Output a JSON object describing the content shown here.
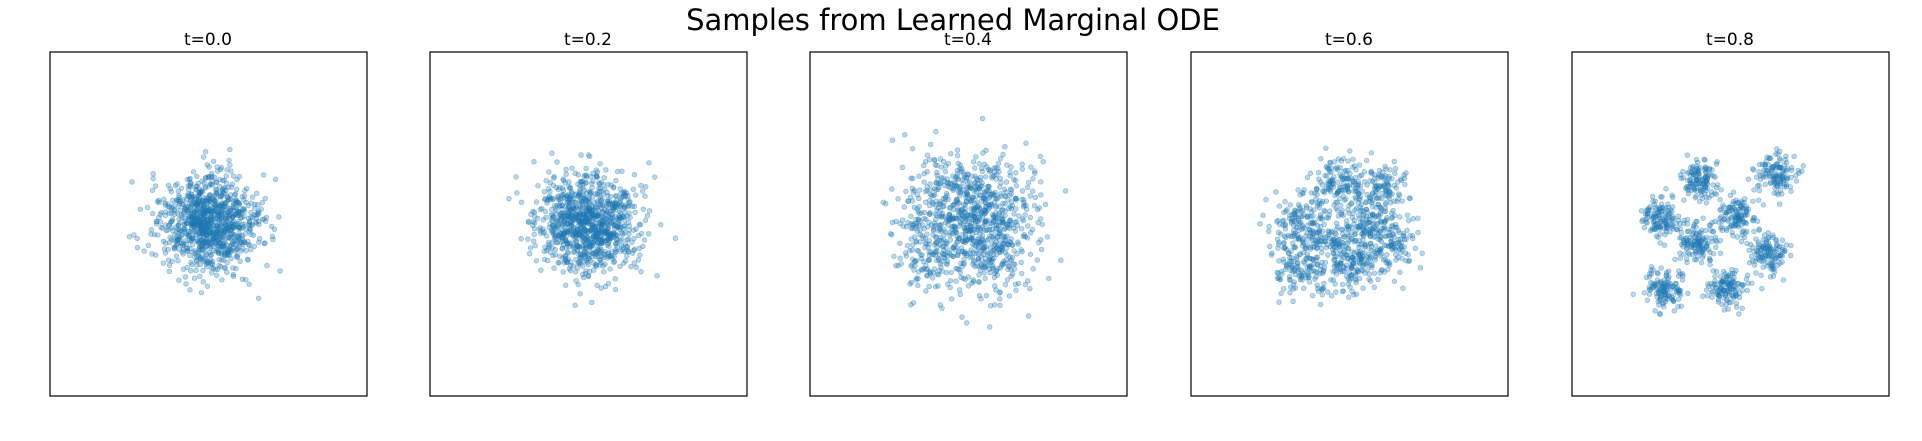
{
  "figure": {
    "title": "Samples from Learned Marginal ODE"
  },
  "chart_data": [
    {
      "type": "scatter",
      "title": "t=0.0",
      "xlim": [
        -3.2,
        3.2
      ],
      "ylim": [
        -3.5,
        3.5
      ],
      "ticks": false,
      "grid": false,
      "point_color": "#1f77b4",
      "point_alpha": 0.3,
      "distribution": {
        "n_points": 1000,
        "components": [
          {
            "center": [
              0.0,
              0.0
            ],
            "std": [
              0.5,
              0.5
            ]
          }
        ]
      }
    },
    {
      "type": "scatter",
      "title": "t=0.2",
      "xlim": [
        -3.2,
        3.2
      ],
      "ylim": [
        -3.5,
        3.5
      ],
      "ticks": false,
      "grid": false,
      "point_color": "#1f77b4",
      "point_alpha": 0.3,
      "distribution": {
        "n_points": 1000,
        "components": [
          {
            "center": [
              0.0,
              0.0
            ],
            "std": [
              0.5,
              0.5
            ]
          }
        ]
      }
    },
    {
      "type": "scatter",
      "title": "t=0.4",
      "xlim": [
        -3.2,
        3.2
      ],
      "ylim": [
        -3.5,
        3.5
      ],
      "ticks": false,
      "grid": false,
      "point_color": "#1f77b4",
      "point_alpha": 0.3,
      "distribution": {
        "n_points": 1000,
        "components": [
          {
            "center": [
              -0.45,
              0.45
            ],
            "std": [
              0.5,
              0.5
            ]
          },
          {
            "center": [
              0.45,
              0.45
            ],
            "std": [
              0.5,
              0.5
            ]
          },
          {
            "center": [
              -0.45,
              -0.45
            ],
            "std": [
              0.5,
              0.5
            ]
          },
          {
            "center": [
              0.45,
              -0.45
            ],
            "std": [
              0.5,
              0.5
            ]
          }
        ]
      }
    },
    {
      "type": "scatter",
      "title": "t=0.6",
      "xlim": [
        -3.2,
        3.2
      ],
      "ylim": [
        -3.5,
        3.5
      ],
      "ticks": false,
      "grid": false,
      "point_color": "#1f77b4",
      "point_alpha": 0.3,
      "distribution": {
        "n_points": 1000,
        "components": [
          {
            "center": [
              -1.0,
              0.0
            ],
            "std": [
              0.3,
              0.3
            ]
          },
          {
            "center": [
              -0.2,
              0.75
            ],
            "std": [
              0.3,
              0.3
            ]
          },
          {
            "center": [
              0.6,
              0.8
            ],
            "std": [
              0.3,
              0.3
            ]
          },
          {
            "center": [
              0.4,
              0.0
            ],
            "std": [
              0.3,
              0.3
            ]
          },
          {
            "center": [
              -0.45,
              -0.35
            ],
            "std": [
              0.3,
              0.3
            ]
          },
          {
            "center": [
              -1.0,
              -0.9
            ],
            "std": [
              0.3,
              0.3
            ]
          },
          {
            "center": [
              0.1,
              -0.8
            ],
            "std": [
              0.3,
              0.3
            ]
          },
          {
            "center": [
              0.8,
              -0.45
            ],
            "std": [
              0.3,
              0.3
            ]
          }
        ]
      }
    },
    {
      "type": "scatter",
      "title": "t=0.8",
      "xlim": [
        -3.2,
        3.2
      ],
      "ylim": [
        -3.5,
        3.5
      ],
      "ticks": false,
      "grid": false,
      "point_color": "#1f77b4",
      "point_alpha": 0.3,
      "distribution": {
        "n_points": 1000,
        "components": [
          {
            "center": [
              -1.4,
              0.1
            ],
            "std": [
              0.2,
              0.2
            ]
          },
          {
            "center": [
              -0.6,
              0.9
            ],
            "std": [
              0.2,
              0.2
            ]
          },
          {
            "center": [
              0.9,
              1.05
            ],
            "std": [
              0.2,
              0.2
            ]
          },
          {
            "center": [
              0.1,
              0.15
            ],
            "std": [
              0.2,
              0.2
            ]
          },
          {
            "center": [
              -0.7,
              -0.4
            ],
            "std": [
              0.2,
              0.2
            ]
          },
          {
            "center": [
              0.75,
              -0.6
            ],
            "std": [
              0.2,
              0.2
            ]
          },
          {
            "center": [
              -1.35,
              -1.3
            ],
            "std": [
              0.2,
              0.2
            ]
          },
          {
            "center": [
              -0.1,
              -1.3
            ],
            "std": [
              0.2,
              0.2
            ]
          }
        ]
      }
    }
  ]
}
